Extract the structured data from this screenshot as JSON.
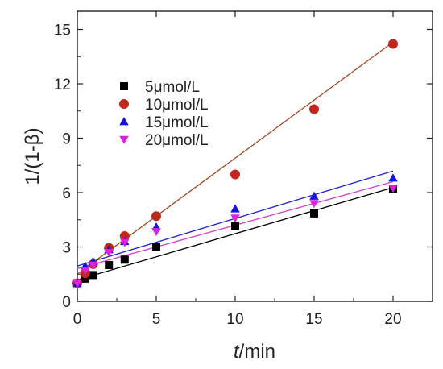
{
  "chart_data": {
    "type": "scatter",
    "title": "",
    "xlabel_var": "t",
    "xlabel_unit": "/min",
    "ylabel": "1/(1-β)",
    "xlim": [
      0,
      22.5
    ],
    "ylim": [
      0,
      16
    ],
    "x_ticks": [
      0,
      5,
      10,
      15,
      20
    ],
    "y_ticks": [
      0,
      3,
      6,
      9,
      12,
      15
    ],
    "grid": false,
    "legend_position": "upper-left",
    "series": [
      {
        "name": "5μmol/L",
        "marker": "square",
        "color": "#000000",
        "line_color": "#000000",
        "x": [
          0,
          0.5,
          1,
          2,
          3,
          5,
          10,
          15,
          20
        ],
        "y": [
          1.0,
          1.25,
          1.45,
          2.0,
          2.3,
          3.0,
          4.15,
          4.85,
          6.2
        ],
        "fit": {
          "intercept": 1.18,
          "slope": 0.255
        }
      },
      {
        "name": "10μmol/L",
        "marker": "circle",
        "color": "#c0271c",
        "line_color": "#a0461e",
        "x": [
          0,
          0.5,
          1,
          2,
          3,
          5,
          10,
          15,
          20
        ],
        "y": [
          1.0,
          1.55,
          2.05,
          2.95,
          3.6,
          4.7,
          7.0,
          10.6,
          14.2
        ],
        "fit": {
          "intercept": 1.5,
          "slope": 0.64
        }
      },
      {
        "name": "15μmol/L",
        "marker": "triangle-up",
        "color": "#1414dc",
        "line_color": "#1f1fcc",
        "x": [
          0,
          0.5,
          1,
          2,
          3,
          5,
          10,
          15,
          20
        ],
        "y": [
          1.0,
          1.95,
          2.2,
          2.85,
          3.3,
          4.1,
          5.1,
          5.8,
          6.8
        ],
        "fit": {
          "intercept": 1.95,
          "slope": 0.262
        }
      },
      {
        "name": "20μmol/L",
        "marker": "triangle-down",
        "color": "#e020e0",
        "line_color": "#d040d0",
        "x": [
          0,
          0.5,
          1,
          2,
          3,
          5,
          10,
          15,
          20
        ],
        "y": [
          1.0,
          1.7,
          2.0,
          2.7,
          3.25,
          3.85,
          4.6,
          5.4,
          6.25
        ],
        "fit": {
          "intercept": 1.8,
          "slope": 0.24
        }
      }
    ]
  }
}
